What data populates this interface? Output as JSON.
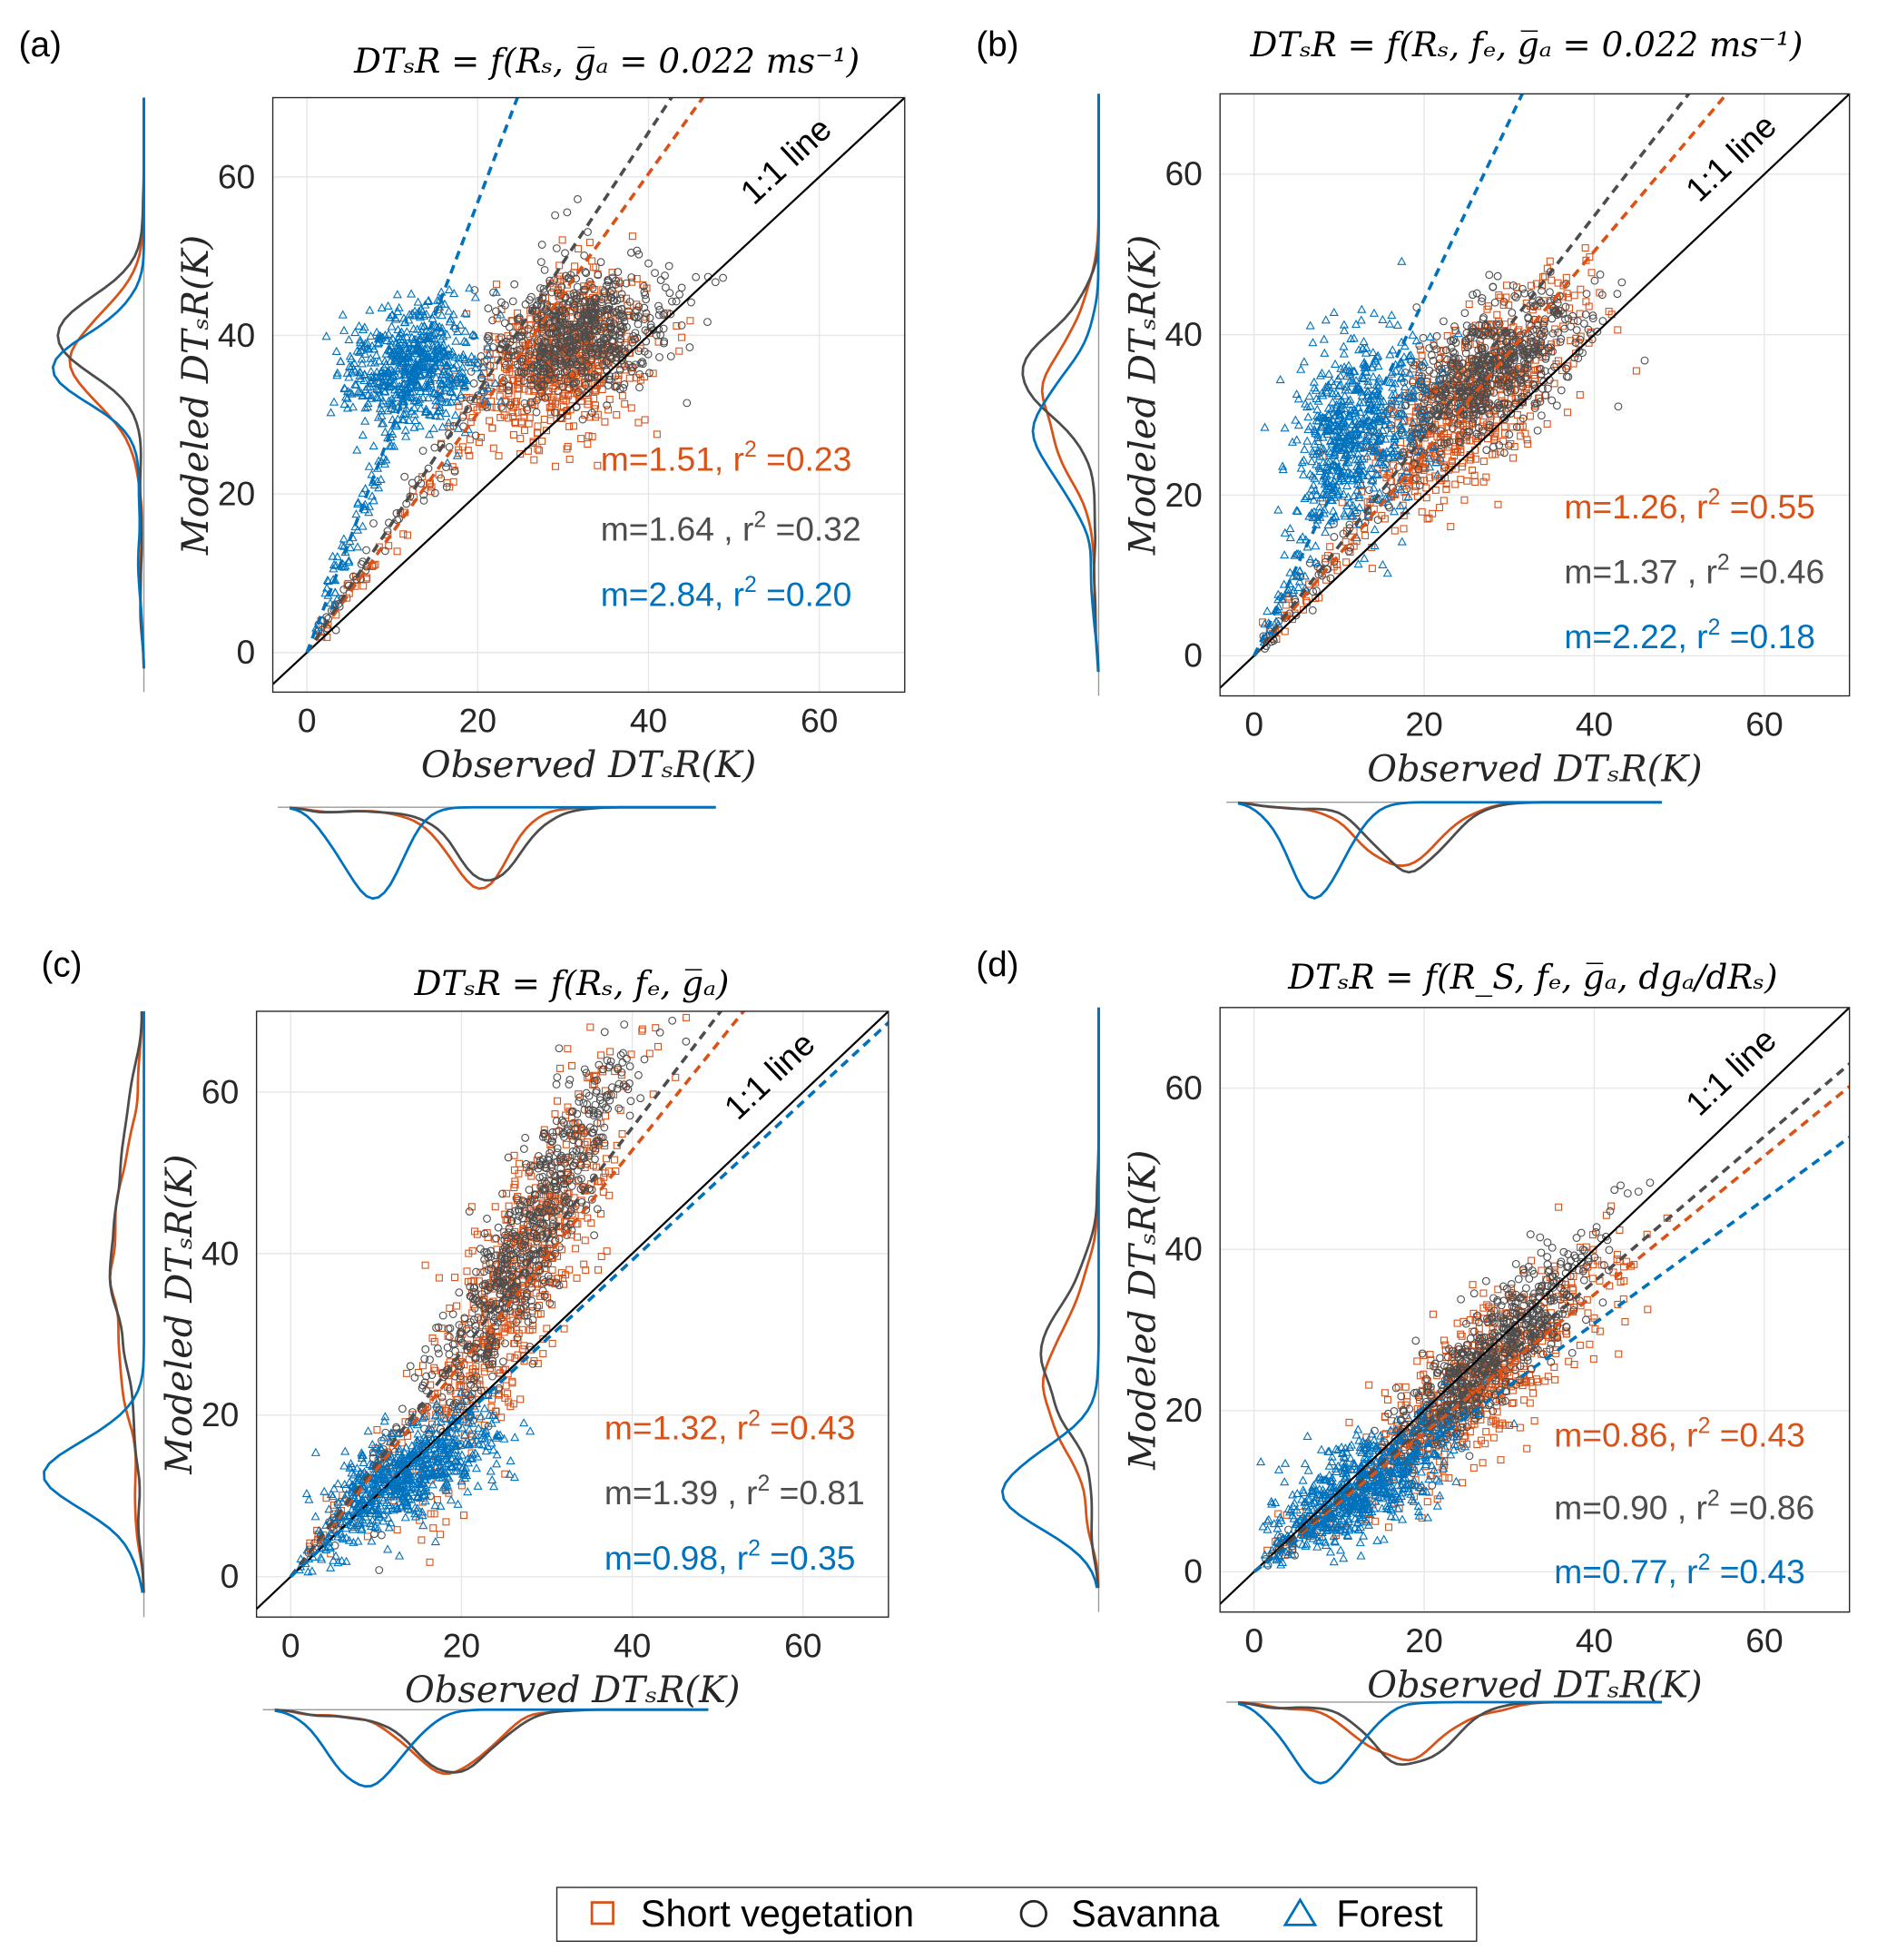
{
  "chart_data": [
    {
      "panel_label": "(a)",
      "title": "DTₛR = f(Rₛ, g̅ₐ = 0.022 ms⁻¹)",
      "type": "scatter",
      "xlabel": "Observed DTₛR(K)",
      "ylabel": "Modeled DTₛR(K)",
      "xlim": [
        -4,
        70
      ],
      "ylim": [
        -5,
        70
      ],
      "xticks": [
        "0",
        "20",
        "40",
        "60"
      ],
      "yticks": [
        "0",
        "20",
        "40",
        "60"
      ],
      "grid": true,
      "one_to_one_label": "1:1 line",
      "series": [
        {
          "name": "Short vegetation",
          "fit_slope": 1.51,
          "stat_prefix": "m=1.51, r",
          "stat_suffix": " =0.23",
          "cluster": {
            "center": [
              30,
              37
            ],
            "sd": [
              5,
              5
            ],
            "rho": 0.3
          }
        },
        {
          "name": "Savanna",
          "fit_slope": 1.64,
          "stat_prefix": "m=1.64 , r",
          "stat_suffix": " =0.32",
          "cluster": {
            "center": [
              32,
              40
            ],
            "sd": [
              5,
              4
            ],
            "rho": 0.3
          }
        },
        {
          "name": "Forest",
          "fit_slope": 2.84,
          "stat_prefix": "m=2.84, r",
          "stat_suffix": " =0.20",
          "cluster": {
            "center": [
              12,
              36
            ],
            "sd": [
              4,
              4
            ],
            "rho": 0.1
          }
        }
      ]
    },
    {
      "panel_label": "(b)",
      "title": "DTₛR = f(Rₛ, fₑ, g̅ₐ = 0.022 ms⁻¹)",
      "type": "scatter",
      "xlabel": "Observed DTₛR(K)",
      "ylabel": "Modeled DTₛR(K)",
      "xlim": [
        -4,
        70
      ],
      "ylim": [
        -5,
        70
      ],
      "xticks": [
        "0",
        "20",
        "40",
        "60"
      ],
      "yticks": [
        "0",
        "20",
        "40",
        "60"
      ],
      "grid": true,
      "one_to_one_label": "1:1 line",
      "series": [
        {
          "name": "Short vegetation",
          "fit_slope": 1.26,
          "stat_prefix": "m=1.26, r",
          "stat_suffix": " =0.55",
          "cluster": {
            "center": [
              26,
              32
            ],
            "sd": [
              6,
              7
            ],
            "rho": 0.7
          }
        },
        {
          "name": "Savanna",
          "fit_slope": 1.37,
          "stat_prefix": "m=1.37 , r",
          "stat_suffix": " =0.46",
          "cluster": {
            "center": [
              27,
              35
            ],
            "sd": [
              6,
              5
            ],
            "rho": 0.6
          }
        },
        {
          "name": "Forest",
          "fit_slope": 2.22,
          "stat_prefix": "m=2.22, r",
          "stat_suffix": " =0.18",
          "cluster": {
            "center": [
              12,
              28
            ],
            "sd": [
              4,
              6
            ],
            "rho": 0.2
          }
        }
      ]
    },
    {
      "panel_label": "(c)",
      "title": "DTₛR = f(Rₛ, fₑ, g̅ₐ)",
      "type": "scatter",
      "xlabel": "Observed DTₛR(K)",
      "ylabel": "Modeled DTₛR(K)",
      "xlim": [
        -4,
        70
      ],
      "ylim": [
        -5,
        70
      ],
      "xticks": [
        "0",
        "20",
        "40",
        "60"
      ],
      "yticks": [
        "0",
        "20",
        "40",
        "60"
      ],
      "grid": true,
      "one_to_one_label": "1:1 line",
      "series": [
        {
          "name": "Short vegetation",
          "fit_slope": 1.32,
          "stat_prefix": "m=1.32, r",
          "stat_suffix": " =0.43",
          "cluster": {
            "center": [
              27,
              38
            ],
            "sd": [
              6,
              13
            ],
            "rho": 0.85
          }
        },
        {
          "name": "Savanna",
          "fit_slope": 1.39,
          "stat_prefix": "m=1.39 , r",
          "stat_suffix": " =0.81",
          "cluster": {
            "center": [
              28,
              42
            ],
            "sd": [
              6,
              12
            ],
            "rho": 0.9
          }
        },
        {
          "name": "Forest",
          "fit_slope": 0.98,
          "stat_prefix": "m=0.98, r",
          "stat_suffix": " =0.35",
          "cluster": {
            "center": [
              14,
              13
            ],
            "sd": [
              5,
              4
            ],
            "rho": 0.6
          }
        }
      ]
    },
    {
      "panel_label": "(d)",
      "title": "DTₛR = f(R_S, fₑ, g̅ₐ, dgₐ/dRₛ)",
      "type": "scatter",
      "xlabel": "Observed DTₛR(K)",
      "ylabel": "Modeled DTₛR(K)",
      "xlim": [
        -4,
        70
      ],
      "ylim": [
        -5,
        70
      ],
      "xticks": [
        "0",
        "20",
        "40",
        "60"
      ],
      "yticks": [
        "0",
        "20",
        "40",
        "60"
      ],
      "grid": true,
      "one_to_one_label": "1:1 line",
      "series": [
        {
          "name": "Short vegetation",
          "fit_slope": 0.86,
          "stat_prefix": "m=0.86, r",
          "stat_suffix": " =0.43",
          "cluster": {
            "center": [
              27,
              24
            ],
            "sd": [
              7,
              7
            ],
            "rho": 0.8
          }
        },
        {
          "name": "Savanna",
          "fit_slope": 0.9,
          "stat_prefix": "m=0.90 , r",
          "stat_suffix": " =0.86",
          "cluster": {
            "center": [
              28,
              27
            ],
            "sd": [
              6,
              7
            ],
            "rho": 0.88
          }
        },
        {
          "name": "Forest",
          "fit_slope": 0.77,
          "stat_prefix": "m=0.77, r",
          "stat_suffix": " =0.43",
          "cluster": {
            "center": [
              13,
              11
            ],
            "sd": [
              5,
              4
            ],
            "rho": 0.6
          }
        }
      ]
    }
  ],
  "legend": {
    "placement": "bottom-center",
    "items": [
      {
        "label": "Short vegetation",
        "marker": "square"
      },
      {
        "label": "Savanna",
        "marker": "circle"
      },
      {
        "label": "Forest",
        "marker": "triangle"
      }
    ]
  },
  "colors": {
    "Short vegetation": "#D95319",
    "Savanna": "#4D4D4D",
    "Forest": "#0072BD",
    "one_to_one": "#000000",
    "grid": "#E6E6E6"
  }
}
